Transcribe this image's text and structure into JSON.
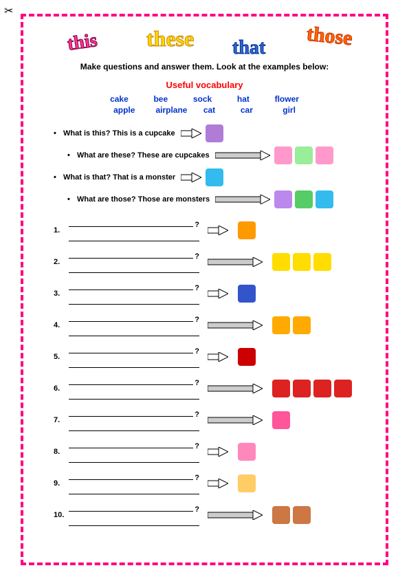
{
  "title_words": {
    "this": "this",
    "these": "these",
    "that": "that",
    "those": "those"
  },
  "instruction": "Make questions and answer them. Look at the examples below:",
  "useful_title": "Useful vocabulary",
  "vocab_row1": [
    "cake",
    "bee",
    "sock",
    "hat",
    "flower"
  ],
  "vocab_row2": [
    "apple",
    "airplane",
    "cat",
    "car",
    "girl"
  ],
  "examples": [
    {
      "text": "What is this? This is a cupcake",
      "arrow": "short",
      "icons": [
        {
          "c": "#b07dd6"
        }
      ],
      "indent": 0
    },
    {
      "text": "What are these? These are cupcakes",
      "arrow": "long",
      "icons": [
        {
          "c": "#ff99cc"
        },
        {
          "c": "#99ee99"
        },
        {
          "c": "#ff99cc"
        }
      ],
      "indent": 1
    },
    {
      "text": "What is that? That is a monster",
      "arrow": "short",
      "icons": [
        {
          "c": "#33bbee"
        }
      ],
      "indent": 0
    },
    {
      "text": "What are those? Those are monsters",
      "arrow": "long",
      "icons": [
        {
          "c": "#bb88ee"
        },
        {
          "c": "#55cc66"
        },
        {
          "c": "#33bbee"
        }
      ],
      "indent": 1
    }
  ],
  "questions": [
    {
      "n": "1.",
      "arrow": "short",
      "icons": [
        {
          "c": "#ff9900"
        }
      ]
    },
    {
      "n": "2.",
      "arrow": "long",
      "icons": [
        {
          "c": "#ffdd00"
        },
        {
          "c": "#ffdd00"
        },
        {
          "c": "#ffdd00"
        }
      ]
    },
    {
      "n": "3.",
      "arrow": "short",
      "icons": [
        {
          "c": "#3355cc"
        }
      ]
    },
    {
      "n": "4.",
      "arrow": "long",
      "icons": [
        {
          "c": "#ffaa00"
        },
        {
          "c": "#ffaa00"
        }
      ]
    },
    {
      "n": "5.",
      "arrow": "short",
      "icons": [
        {
          "c": "#cc0000"
        }
      ]
    },
    {
      "n": "6.",
      "arrow": "long",
      "icons": [
        {
          "c": "#dd2222"
        },
        {
          "c": "#dd2222"
        },
        {
          "c": "#dd2222"
        },
        {
          "c": "#dd2222"
        }
      ]
    },
    {
      "n": "7.",
      "arrow": "long",
      "icons": [
        {
          "c": "#ff5599"
        }
      ]
    },
    {
      "n": "8.",
      "arrow": "short",
      "icons": [
        {
          "c": "#ff88bb"
        },
        {
          "c": "#ffffff"
        }
      ]
    },
    {
      "n": "9.",
      "arrow": "short",
      "icons": [
        {
          "c": "#ffcc66"
        }
      ]
    },
    {
      "n": "10.",
      "arrow": "long",
      "icons": [
        {
          "c": "#cc7744"
        },
        {
          "c": "#cc7744"
        }
      ]
    }
  ],
  "colors": {
    "border": "#ff0080",
    "title_pink": "#ff3399",
    "title_yellow": "#ffd700",
    "title_blue": "#3366cc",
    "title_orange": "#ff6600",
    "red": "#ff0000",
    "vocab_blue": "#0033cc"
  }
}
